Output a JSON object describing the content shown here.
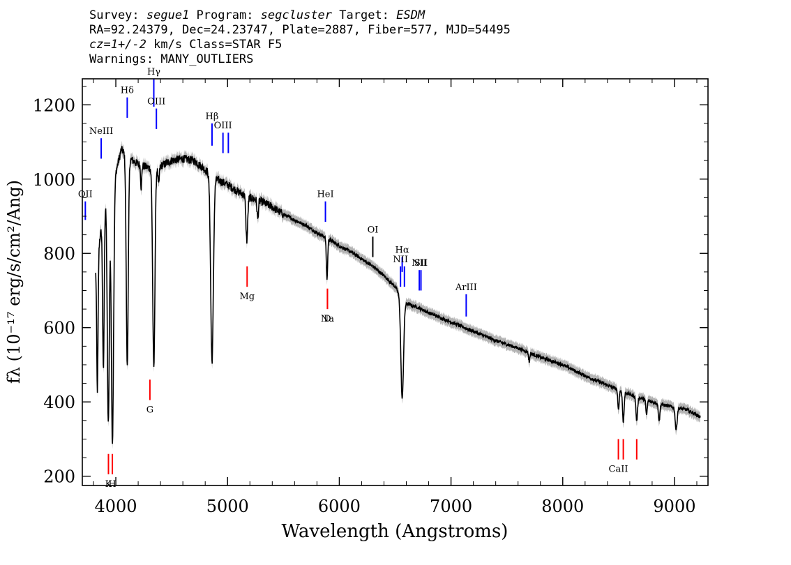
{
  "header": {
    "survey_label": "Survey: ",
    "survey": "segue1",
    "program_label": " Program: ",
    "program": "segcluster",
    "target_label": " Target: ",
    "target": "ESDM",
    "line2": "RA=92.24379, Dec=24.23747, Plate=2887, Fiber=577, MJD=54495",
    "cz_value": "cz=1+/-2",
    "cz_rest": " km/s Class=STAR F5",
    "warnings": "Warnings: MANY_OUTLIERS"
  },
  "colors": {
    "spectrum": "#000000",
    "error_band": "#b4b4b4",
    "emission_marker": "#0000ff",
    "absorption_marker": "#ff0000",
    "sky_marker": "#000000"
  },
  "chart_data": {
    "type": "line",
    "xlabel": "Wavelength (Angstroms)",
    "ylabel": "fλ (10⁻¹⁷ erg/s/cm²/Ang)",
    "xlim": [
      3700,
      9300
    ],
    "ylim": [
      175,
      1270
    ],
    "x_ticks": [
      4000,
      5000,
      6000,
      7000,
      8000,
      9000
    ],
    "y_ticks": [
      200,
      400,
      600,
      800,
      1000,
      1200
    ],
    "x_tick_labels": [
      "4000",
      "5000",
      "6000",
      "7000",
      "8000",
      "9000"
    ],
    "y_tick_labels": [
      "200",
      "400",
      "600",
      "800",
      "1000",
      "1200"
    ],
    "continuum": [
      [
        3820,
        760
      ],
      [
        3900,
        930
      ],
      [
        4000,
        1020
      ],
      [
        4050,
        1080
      ],
      [
        4100,
        1060
      ],
      [
        4200,
        1040
      ],
      [
        4300,
        1030
      ],
      [
        4400,
        1035
      ],
      [
        4500,
        1050
      ],
      [
        4600,
        1055
      ],
      [
        4700,
        1050
      ],
      [
        4800,
        1025
      ],
      [
        4900,
        1000
      ],
      [
        5000,
        985
      ],
      [
        5100,
        965
      ],
      [
        5200,
        950
      ],
      [
        5300,
        940
      ],
      [
        5400,
        925
      ],
      [
        5500,
        905
      ],
      [
        5600,
        890
      ],
      [
        5700,
        875
      ],
      [
        5800,
        855
      ],
      [
        5900,
        840
      ],
      [
        6000,
        820
      ],
      [
        6100,
        805
      ],
      [
        6200,
        785
      ],
      [
        6300,
        765
      ],
      [
        6400,
        740
      ],
      [
        6500,
        710
      ],
      [
        6560,
        680
      ],
      [
        6600,
        665
      ],
      [
        6700,
        655
      ],
      [
        6800,
        640
      ],
      [
        7000,
        615
      ],
      [
        7200,
        590
      ],
      [
        7400,
        565
      ],
      [
        7600,
        545
      ],
      [
        7800,
        520
      ],
      [
        8000,
        500
      ],
      [
        8200,
        470
      ],
      [
        8400,
        445
      ],
      [
        8600,
        420
      ],
      [
        8800,
        400
      ],
      [
        9000,
        385
      ],
      [
        9100,
        380
      ],
      [
        9230,
        360
      ]
    ],
    "absorption_lines": [
      {
        "w": 3835,
        "depth": 360,
        "width": 6
      },
      {
        "w": 3889,
        "depth": 420,
        "width": 7
      },
      {
        "w": 3933,
        "depth": 620,
        "width": 9
      },
      {
        "w": 3970,
        "depth": 700,
        "width": 10
      },
      {
        "w": 4102,
        "depth": 560,
        "width": 9
      },
      {
        "w": 4227,
        "depth": 60,
        "width": 5
      },
      {
        "w": 4340,
        "depth": 540,
        "width": 10
      },
      {
        "w": 4383,
        "depth": 50,
        "width": 6
      },
      {
        "w": 4861,
        "depth": 500,
        "width": 12
      },
      {
        "w": 5172,
        "depth": 120,
        "width": 8
      },
      {
        "w": 5270,
        "depth": 50,
        "width": 6
      },
      {
        "w": 5890,
        "depth": 110,
        "width": 6
      },
      {
        "w": 6563,
        "depth": 270,
        "width": 12
      },
      {
        "w": 7700,
        "depth": 25,
        "width": 5
      },
      {
        "w": 8498,
        "depth": 55,
        "width": 6
      },
      {
        "w": 8542,
        "depth": 80,
        "width": 7
      },
      {
        "w": 8662,
        "depth": 65,
        "width": 7
      },
      {
        "w": 8750,
        "depth": 40,
        "width": 6
      },
      {
        "w": 8863,
        "depth": 45,
        "width": 7
      },
      {
        "w": 9015,
        "depth": 60,
        "width": 8
      }
    ],
    "emission_markers": [
      {
        "label": "OII",
        "w": 3727,
        "y0": 890,
        "y1": 940
      },
      {
        "label": "NeIII",
        "w": 3869,
        "y0": 1055,
        "y1": 1110
      },
      {
        "label": "Hδ",
        "w": 4102,
        "y0": 1165,
        "y1": 1220
      },
      {
        "label": "Hγ",
        "w": 4340,
        "y0": 1195,
        "y1": 1270
      },
      {
        "label": "OIII",
        "w": 4363,
        "y0": 1135,
        "y1": 1190
      },
      {
        "label": "Hβ",
        "w": 4861,
        "y0": 1090,
        "y1": 1150
      },
      {
        "label": "OIII",
        "w": 4959,
        "y0": 1070,
        "y1": 1125
      },
      {
        "label": "",
        "w": 5007,
        "y0": 1070,
        "y1": 1125
      },
      {
        "label": "HeI",
        "w": 5876,
        "y0": 885,
        "y1": 940
      },
      {
        "label": "Hα",
        "w": 6563,
        "y0": 750,
        "y1": 790
      },
      {
        "label": "NII",
        "w": 6548,
        "y0": 710,
        "y1": 765
      },
      {
        "label": "",
        "w": 6583,
        "y0": 710,
        "y1": 765
      },
      {
        "label": "NII",
        "w": 6716,
        "y0": 700,
        "y1": 755
      },
      {
        "label": "SII",
        "w": 6731,
        "y0": 700,
        "y1": 755
      },
      {
        "label": "ArIII",
        "w": 7136,
        "y0": 630,
        "y1": 690
      }
    ],
    "sky_markers": [
      {
        "label": "OI",
        "w": 6300,
        "y0": 790,
        "y1": 845
      }
    ],
    "absorption_markers": [
      {
        "label": "K",
        "w": 3934,
        "y0": 205,
        "y1": 260
      },
      {
        "label": "H",
        "w": 3969,
        "y0": 205,
        "y1": 260
      },
      {
        "label": "G",
        "w": 4305,
        "y0": 405,
        "y1": 460
      },
      {
        "label": "Mg",
        "w": 5175,
        "y0": 710,
        "y1": 765
      },
      {
        "label": "Na",
        "w": 5894,
        "y0": 650,
        "y1": 705
      },
      {
        "label": "D",
        "w": 5894,
        "y0": 650,
        "y1": 705
      },
      {
        "label": "CaII",
        "w": 8498,
        "y0": 245,
        "y1": 300
      },
      {
        "label": "",
        "w": 8542,
        "y0": 245,
        "y1": 300
      },
      {
        "label": "",
        "w": 8662,
        "y0": 245,
        "y1": 300
      }
    ]
  }
}
